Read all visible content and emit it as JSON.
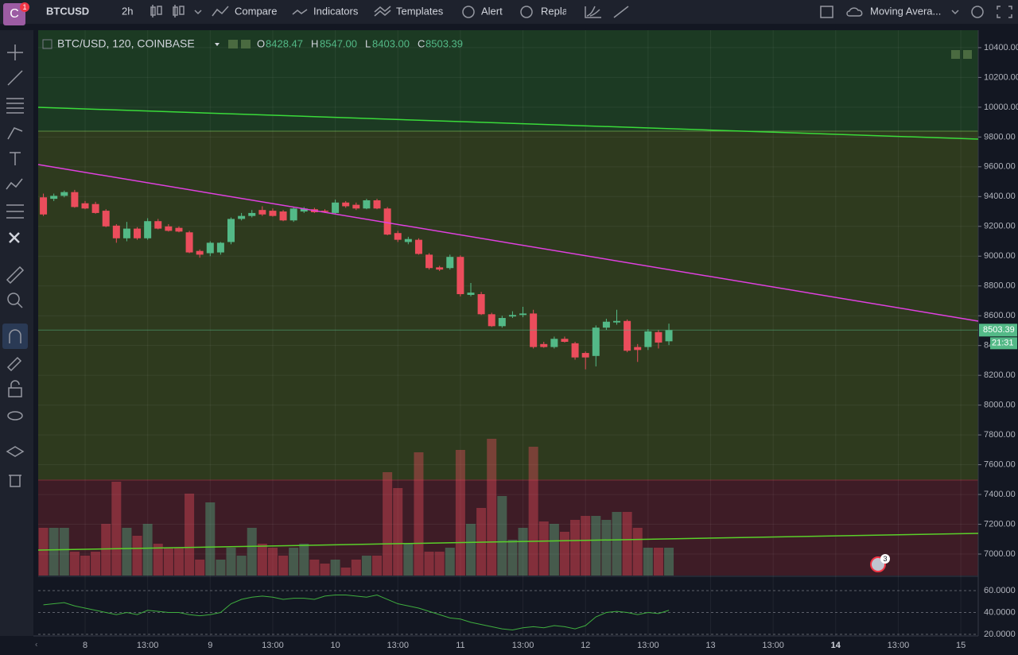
{
  "toolbar": {
    "avatar": "C",
    "notifications": "1",
    "symbol": "BTCUSD",
    "interval": "2h",
    "buttons": [
      "Compare",
      "Indicators",
      "Templates",
      "Alert",
      "Repla"
    ],
    "indicator_select": "Moving Avera..."
  },
  "legend": {
    "title": "BTC/USD, 120, COINBASE",
    "open_label": "O",
    "open": "8428.47",
    "high_label": "H",
    "high": "8547.00",
    "low_label": "L",
    "low": "8403.00",
    "close_label": "C",
    "close": "8503.39"
  },
  "event_badge": "3",
  "chart_data": {
    "type": "candlestick",
    "up_color": "#53b987",
    "down_color": "#eb4d5c",
    "open": [
      9395,
      9385,
      9405,
      9430,
      9355,
      9350,
      9305,
      9205,
      9120,
      9185,
      9120,
      9235,
      9200,
      9190,
      9160,
      9035,
      9020,
      9025,
      9095,
      9250,
      9270,
      9310,
      9305,
      9300,
      9240,
      9300,
      9315,
      9305,
      9290,
      9360,
      9345,
      9320,
      9375,
      9320,
      9155,
      9095,
      9110,
      9010,
      8925,
      8920,
      8995,
      8740,
      8745,
      8610,
      8530,
      8595,
      8605,
      8615,
      8410,
      8390,
      8445,
      8415,
      8350,
      8330,
      8520,
      8555,
      8565,
      8390,
      8390,
      8490,
      8428.47
    ],
    "high": [
      9420,
      9420,
      9440,
      9445,
      9370,
      9365,
      9315,
      9215,
      9230,
      9195,
      9255,
      9250,
      9215,
      9200,
      9170,
      9045,
      9100,
      9095,
      9260,
      9290,
      9310,
      9335,
      9320,
      9310,
      9330,
      9330,
      9325,
      9315,
      9380,
      9370,
      9360,
      9385,
      9385,
      9330,
      9170,
      9130,
      9120,
      9020,
      8935,
      9010,
      9005,
      8820,
      8760,
      8620,
      8600,
      8630,
      8660,
      8640,
      8425,
      8460,
      8460,
      8425,
      8360,
      8535,
      8580,
      8640,
      8575,
      8410,
      8510,
      8505,
      8547
    ],
    "low": [
      9270,
      9370,
      9395,
      9325,
      9315,
      9285,
      9195,
      9090,
      9100,
      9110,
      9110,
      9180,
      9165,
      9160,
      9020,
      8990,
      9000,
      9010,
      9080,
      9240,
      9260,
      9270,
      9265,
      9235,
      9230,
      9290,
      9290,
      9290,
      9280,
      9325,
      9310,
      9315,
      9315,
      9140,
      9095,
      9080,
      9010,
      8910,
      8900,
      8910,
      8730,
      8730,
      8605,
      8525,
      8520,
      8585,
      8590,
      8380,
      8385,
      8380,
      8420,
      8305,
      8240,
      8260,
      8505,
      8540,
      8355,
      8290,
      8370,
      8380,
      8403
    ],
    "close": [
      9280,
      9405,
      9430,
      9330,
      9320,
      9290,
      9200,
      9120,
      9185,
      9120,
      9235,
      9185,
      9170,
      9165,
      9025,
      9010,
      9090,
      9090,
      9250,
      9270,
      9290,
      9280,
      9270,
      9240,
      9320,
      9320,
      9295,
      9298,
      9360,
      9335,
      9320,
      9375,
      9320,
      9145,
      9110,
      9115,
      9015,
      8920,
      8910,
      8995,
      8745,
      8755,
      8610,
      8530,
      8585,
      8605,
      8615,
      8390,
      8390,
      8445,
      8425,
      8320,
      8320,
      8520,
      8560,
      8565,
      8365,
      8370,
      8495,
      8420,
      8503.39
    ],
    "volume": [
      60,
      60,
      60,
      30,
      25,
      30,
      65,
      118,
      60,
      50,
      65,
      40,
      35,
      35,
      103,
      20,
      92,
      20,
      35,
      25,
      60,
      40,
      35,
      25,
      35,
      40,
      20,
      15,
      20,
      10,
      20,
      25,
      25,
      130,
      110,
      40,
      155,
      30,
      30,
      35,
      158,
      65,
      85,
      172,
      100,
      45,
      60,
      162,
      68,
      65,
      55,
      70,
      75,
      75,
      70,
      80,
      80,
      60,
      35,
      35,
      35
    ],
    "ylim": [
      6856,
      10517
    ],
    "yticks": [
      {
        "value": 10400,
        "label": "10400.00"
      },
      {
        "value": 10200,
        "label": "10200.00"
      },
      {
        "value": 10000,
        "label": "10000.00"
      },
      {
        "value": 9800,
        "label": "9800.00"
      },
      {
        "value": 9600,
        "label": "9600.00"
      },
      {
        "value": 9400,
        "label": "9400.00"
      },
      {
        "value": 9200,
        "label": "9200.00"
      },
      {
        "value": 9000,
        "label": "9000.00"
      },
      {
        "value": 8800,
        "label": "8800.00"
      },
      {
        "value": 8600,
        "label": "8600.00"
      },
      {
        "value": 8400,
        "label": "8400.00"
      },
      {
        "value": 8200,
        "label": "8200.00"
      },
      {
        "value": 8000,
        "label": "8000.00"
      },
      {
        "value": 7800,
        "label": "7800.00"
      },
      {
        "value": 7600,
        "label": "7600.00"
      },
      {
        "value": 7400,
        "label": "7400.00"
      },
      {
        "value": 7200,
        "label": "7200.00"
      },
      {
        "value": 7000,
        "label": "7000.00"
      }
    ],
    "countdown": "21:31",
    "x_labels": [
      "8",
      "13:00",
      "9",
      "13:00",
      "10",
      "13:00",
      "11",
      "13:00",
      "12",
      "13:00",
      "13",
      "13:00",
      "14",
      "13:00",
      "15"
    ],
    "rsi": [
      47,
      48,
      49,
      46,
      44,
      42,
      40,
      38,
      40,
      38,
      42,
      41,
      40,
      40,
      38,
      37,
      38,
      40,
      48,
      52,
      54,
      55,
      54,
      52,
      53,
      53,
      52,
      55,
      56,
      56,
      55,
      54,
      56,
      52,
      48,
      46,
      44,
      41,
      38,
      35,
      34,
      31,
      29,
      27,
      25,
      24,
      26,
      27,
      26,
      28,
      27,
      25,
      28,
      36,
      40,
      41,
      40,
      38,
      40,
      39,
      42
    ],
    "rsi_ylim": [
      20,
      72.4
    ],
    "rsi_ticks": [
      {
        "value": 60,
        "label": "60.0000"
      },
      {
        "value": 40,
        "label": "40.0000"
      },
      {
        "value": 20,
        "label": "20.0000"
      }
    ]
  }
}
